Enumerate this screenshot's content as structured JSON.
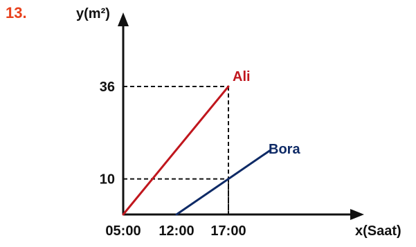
{
  "question_number": "13.",
  "colors": {
    "question_number": "#e8401c",
    "axis": "#111111",
    "guide": "#111111"
  },
  "chart_data": {
    "type": "line",
    "title": "",
    "xlabel": "x(Saat)",
    "ylabel": "y(m²)",
    "x_ticks": [
      "05:00",
      "12:00",
      "17:00"
    ],
    "y_ticks": [
      10,
      36
    ],
    "series": [
      {
        "name": "Ali",
        "color": "#c0161d",
        "points": [
          {
            "x": "05:00",
            "y": 0
          },
          {
            "x": "17:00",
            "y": 36
          }
        ]
      },
      {
        "name": "Bora",
        "color": "#0e2a66",
        "points": [
          {
            "x": "12:00",
            "y": 0
          },
          {
            "x": "17:00",
            "y": 10
          }
        ]
      }
    ],
    "guides": [
      {
        "x": "17:00",
        "y": 36
      },
      {
        "x": "17:00",
        "y": 10
      }
    ],
    "grid": false,
    "legend": "none"
  }
}
